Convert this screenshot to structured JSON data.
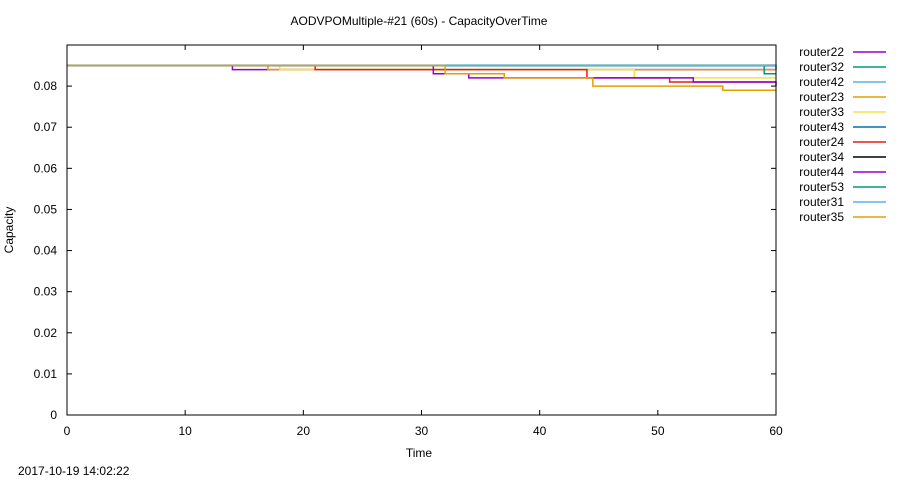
{
  "chart_data": {
    "type": "line",
    "title": "AODVPOMultiple-#21 (60s) - CapacityOverTime",
    "xlabel": "Time",
    "ylabel": "Capacity",
    "xlim": [
      0,
      60
    ],
    "ylim": [
      0,
      0.09
    ],
    "xticks": [
      0,
      10,
      20,
      30,
      40,
      50,
      60
    ],
    "xtick_labels": [
      "0",
      "10",
      "20",
      "30",
      "40",
      "50",
      "60"
    ],
    "yticks": [
      0,
      0.01,
      0.02,
      0.03,
      0.04,
      0.05,
      0.06,
      0.07,
      0.08
    ],
    "ytick_labels": [
      "0",
      "0.01",
      "0.02",
      "0.03",
      "0.04",
      "0.05",
      "0.06",
      "0.07",
      "0.08"
    ],
    "grid": false,
    "legend_position": "outside-right",
    "step": true,
    "series": [
      {
        "name": "router22",
        "color": "#9400d3",
        "x": [
          0,
          13.5,
          14,
          60
        ],
        "y": [
          0.085,
          0.085,
          0.084,
          0.084
        ]
      },
      {
        "name": "router32",
        "color": "#009e73",
        "x": [
          0,
          42,
          60
        ],
        "y": [
          0.085,
          0.085,
          0.085
        ]
      },
      {
        "name": "router42",
        "color": "#56b4e9",
        "x": [
          0,
          20.5,
          60
        ],
        "y": [
          0.085,
          0.085,
          0.084
        ]
      },
      {
        "name": "router23",
        "color": "#e69f00",
        "x": [
          0,
          16,
          17,
          60
        ],
        "y": [
          0.085,
          0.085,
          0.084,
          0.084
        ]
      },
      {
        "name": "router33",
        "color": "#f0e442",
        "x": [
          0,
          17,
          18,
          48,
          60
        ],
        "y": [
          0.085,
          0.085,
          0.084,
          0.082,
          0.082
        ]
      },
      {
        "name": "router43",
        "color": "#0072b2",
        "x": [
          0,
          60
        ],
        "y": [
          0.085,
          0.085
        ]
      },
      {
        "name": "router24",
        "color": "#e51e10",
        "x": [
          0,
          18,
          21,
          44,
          51,
          58,
          60
        ],
        "y": [
          0.085,
          0.085,
          0.084,
          0.082,
          0.081,
          0.081,
          0.081
        ]
      },
      {
        "name": "router34",
        "color": "#000000",
        "x": [
          0,
          24,
          25,
          60
        ],
        "y": [
          0.085,
          0.085,
          0.085,
          0.085
        ]
      },
      {
        "name": "router44",
        "color": "#9400d3",
        "x": [
          0,
          21,
          31,
          34,
          53,
          58.5,
          60
        ],
        "y": [
          0.085,
          0.085,
          0.083,
          0.082,
          0.081,
          0.081,
          0.08
        ]
      },
      {
        "name": "router53",
        "color": "#009e73",
        "x": [
          0,
          52,
          53,
          59,
          60
        ],
        "y": [
          0.085,
          0.085,
          0.085,
          0.083,
          0.083
        ]
      },
      {
        "name": "router31",
        "color": "#56b4e9",
        "x": [
          0,
          20.5,
          60
        ],
        "y": [
          0.085,
          0.085,
          0.084
        ]
      },
      {
        "name": "router35",
        "color": "#e69f00",
        "x": [
          0,
          25.5,
          32,
          37,
          44.5,
          55.5,
          60
        ],
        "y": [
          0.085,
          0.085,
          0.083,
          0.082,
          0.08,
          0.079,
          0.079
        ]
      }
    ]
  },
  "footer": {
    "timestamp": "2017-10-19 14:02:22"
  }
}
